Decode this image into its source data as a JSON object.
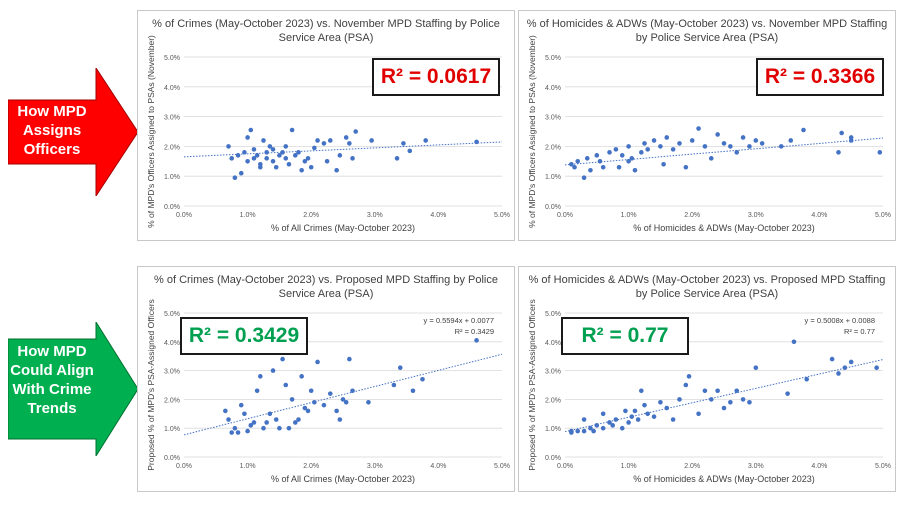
{
  "arrows": [
    {
      "label": "How MPD Assigns Officers",
      "color": "#ff0000"
    },
    {
      "label": "How MPD Could Align With Crime Trends",
      "color": "#00b050"
    }
  ],
  "colors": {
    "point": "#4472c4",
    "trend": "#4472c4",
    "r2_red": "#e00000",
    "r2_green": "#00a050"
  },
  "chart_data": [
    {
      "type": "scatter",
      "title": "% of Crimes (May-October 2023) vs. November MPD Staffing by Police Service Area (PSA)",
      "xlabel": "% of All Crimes (May-October 2023)",
      "ylabel": "% of MPD's Officers Assigned to PSAs (November)",
      "xlim": [
        0,
        5
      ],
      "ylim": [
        0,
        5
      ],
      "xticks": [
        "0.0%",
        "1.0%",
        "2.0%",
        "3.0%",
        "4.0%",
        "5.0%"
      ],
      "yticks": [
        "0.0%",
        "1.0%",
        "2.0%",
        "3.0%",
        "4.0%",
        "5.0%"
      ],
      "r2_label": "R² = 0.0617",
      "r2_color": "red",
      "trend": {
        "slope": 0.1,
        "intercept": 1.65
      },
      "equation": "",
      "r2_text": "",
      "points": [
        [
          0.7,
          2.0
        ],
        [
          0.75,
          1.6
        ],
        [
          0.8,
          0.95
        ],
        [
          0.85,
          1.7
        ],
        [
          0.9,
          1.1
        ],
        [
          0.95,
          1.8
        ],
        [
          1.0,
          2.3
        ],
        [
          1.0,
          1.5
        ],
        [
          1.05,
          2.55
        ],
        [
          1.1,
          1.6
        ],
        [
          1.1,
          1.9
        ],
        [
          1.15,
          1.7
        ],
        [
          1.2,
          1.4
        ],
        [
          1.2,
          1.3
        ],
        [
          1.25,
          2.2
        ],
        [
          1.3,
          1.6
        ],
        [
          1.3,
          1.8
        ],
        [
          1.35,
          2.0
        ],
        [
          1.4,
          1.5
        ],
        [
          1.4,
          1.9
        ],
        [
          1.45,
          1.3
        ],
        [
          1.5,
          1.7
        ],
        [
          1.55,
          1.8
        ],
        [
          1.6,
          1.6
        ],
        [
          1.6,
          2.0
        ],
        [
          1.65,
          1.4
        ],
        [
          1.7,
          2.55
        ],
        [
          1.75,
          1.7
        ],
        [
          1.8,
          1.8
        ],
        [
          1.85,
          1.2
        ],
        [
          1.9,
          1.5
        ],
        [
          1.95,
          1.6
        ],
        [
          2.0,
          1.3
        ],
        [
          2.05,
          1.95
        ],
        [
          2.1,
          2.2
        ],
        [
          2.2,
          2.1
        ],
        [
          2.25,
          1.5
        ],
        [
          2.3,
          2.2
        ],
        [
          2.4,
          1.2
        ],
        [
          2.45,
          1.7
        ],
        [
          2.55,
          2.3
        ],
        [
          2.6,
          2.1
        ],
        [
          2.65,
          1.6
        ],
        [
          2.7,
          2.5
        ],
        [
          2.95,
          2.2
        ],
        [
          3.35,
          1.6
        ],
        [
          3.45,
          2.1
        ],
        [
          3.55,
          1.85
        ],
        [
          3.8,
          2.2
        ],
        [
          4.6,
          2.15
        ]
      ]
    },
    {
      "type": "scatter",
      "title": "% of Homicides & ADWs (May-October 2023) vs. November MPD Staffing by Police Service Area (PSA)",
      "xlabel": "% of Homicides & ADWs (May-October 2023)",
      "ylabel": "% of MPD's Officers Assigned to PSAs (November)",
      "xlim": [
        0,
        5
      ],
      "ylim": [
        0,
        5
      ],
      "xticks": [
        "0.0%",
        "1.0%",
        "2.0%",
        "3.0%",
        "4.0%",
        "5.0%"
      ],
      "yticks": [
        "0.0%",
        "1.0%",
        "2.0%",
        "3.0%",
        "4.0%",
        "5.0%"
      ],
      "r2_label": "R² = 0.3366",
      "r2_color": "red",
      "trend": {
        "slope": 0.18,
        "intercept": 1.38
      },
      "equation": "",
      "r2_text": "",
      "points": [
        [
          0.1,
          1.4
        ],
        [
          0.15,
          1.3
        ],
        [
          0.2,
          1.5
        ],
        [
          0.3,
          0.95
        ],
        [
          0.35,
          1.6
        ],
        [
          0.4,
          1.2
        ],
        [
          0.5,
          1.7
        ],
        [
          0.55,
          1.5
        ],
        [
          0.6,
          1.3
        ],
        [
          0.7,
          1.8
        ],
        [
          0.8,
          1.9
        ],
        [
          0.85,
          1.3
        ],
        [
          0.9,
          1.7
        ],
        [
          1.0,
          1.5
        ],
        [
          1.0,
          2.0
        ],
        [
          1.05,
          1.6
        ],
        [
          1.1,
          1.2
        ],
        [
          1.2,
          1.8
        ],
        [
          1.25,
          2.1
        ],
        [
          1.3,
          1.9
        ],
        [
          1.4,
          2.2
        ],
        [
          1.5,
          2.0
        ],
        [
          1.55,
          1.4
        ],
        [
          1.6,
          2.3
        ],
        [
          1.7,
          1.9
        ],
        [
          1.8,
          2.1
        ],
        [
          1.9,
          1.3
        ],
        [
          2.0,
          2.2
        ],
        [
          2.1,
          2.6
        ],
        [
          2.2,
          2.0
        ],
        [
          2.3,
          1.6
        ],
        [
          2.4,
          2.4
        ],
        [
          2.5,
          2.1
        ],
        [
          2.6,
          2.0
        ],
        [
          2.7,
          1.8
        ],
        [
          2.8,
          2.3
        ],
        [
          2.9,
          2.0
        ],
        [
          3.0,
          2.2
        ],
        [
          3.1,
          2.1
        ],
        [
          3.4,
          2.0
        ],
        [
          3.55,
          2.2
        ],
        [
          3.75,
          2.55
        ],
        [
          4.3,
          1.8
        ],
        [
          4.35,
          2.45
        ],
        [
          4.5,
          2.2
        ],
        [
          4.5,
          2.3
        ],
        [
          4.95,
          1.8
        ]
      ]
    },
    {
      "type": "scatter",
      "title": "% of Crimes (May-October 2023) vs. Proposed MPD Staffing by Police Service Area (PSA)",
      "xlabel": "% of All Crimes (May-October 2023)",
      "ylabel": "Proposed % of MPD's PSA-Assigned Officers",
      "xlim": [
        0,
        5
      ],
      "ylim": [
        0,
        5
      ],
      "xticks": [
        "0.0%",
        "1.0%",
        "2.0%",
        "3.0%",
        "4.0%",
        "5.0%"
      ],
      "yticks": [
        "0.0%",
        "1.0%",
        "2.0%",
        "3.0%",
        "4.0%",
        "5.0%"
      ],
      "r2_label": "R² = 0.3429",
      "r2_color": "green",
      "trend": {
        "slope": 0.5594,
        "intercept": 0.77
      },
      "equation": "y = 0.5594x + 0.0077",
      "r2_text": "R² = 0.3429",
      "points": [
        [
          0.65,
          1.6
        ],
        [
          0.7,
          1.3
        ],
        [
          0.75,
          0.85
        ],
        [
          0.8,
          1.0
        ],
        [
          0.85,
          0.85
        ],
        [
          0.9,
          1.8
        ],
        [
          0.95,
          1.5
        ],
        [
          1.0,
          0.9
        ],
        [
          1.05,
          1.1
        ],
        [
          1.1,
          1.2
        ],
        [
          1.15,
          2.3
        ],
        [
          1.2,
          2.8
        ],
        [
          1.25,
          1.0
        ],
        [
          1.3,
          1.2
        ],
        [
          1.35,
          1.5
        ],
        [
          1.4,
          3.0
        ],
        [
          1.45,
          1.3
        ],
        [
          1.5,
          1.0
        ],
        [
          1.55,
          3.4
        ],
        [
          1.6,
          2.5
        ],
        [
          1.65,
          1.0
        ],
        [
          1.7,
          2.0
        ],
        [
          1.75,
          1.2
        ],
        [
          1.8,
          1.3
        ],
        [
          1.85,
          2.8
        ],
        [
          1.9,
          1.7
        ],
        [
          1.95,
          1.6
        ],
        [
          2.0,
          2.3
        ],
        [
          2.05,
          1.9
        ],
        [
          2.1,
          3.3
        ],
        [
          2.2,
          1.8
        ],
        [
          2.3,
          2.2
        ],
        [
          2.4,
          1.6
        ],
        [
          2.45,
          1.3
        ],
        [
          2.5,
          2.0
        ],
        [
          2.55,
          1.9
        ],
        [
          2.6,
          3.4
        ],
        [
          2.65,
          2.3
        ],
        [
          2.9,
          1.9
        ],
        [
          3.3,
          2.5
        ],
        [
          3.4,
          3.1
        ],
        [
          3.6,
          2.3
        ],
        [
          3.75,
          2.7
        ],
        [
          4.6,
          4.05
        ]
      ]
    },
    {
      "type": "scatter",
      "title": "% of Homicides & ADWs (May-October 2023) vs. Proposed MPD Staffing by Police Service Area (PSA)",
      "xlabel": "% of Homicides & ADWs (May-October 2023)",
      "ylabel": "Proposed % of MPD's PSA-Assigned Officers",
      "xlim": [
        0,
        5
      ],
      "ylim": [
        0,
        5
      ],
      "xticks": [
        "0.0%",
        "1.0%",
        "2.0%",
        "3.0%",
        "4.0%",
        "5.0%"
      ],
      "yticks": [
        "0.0%",
        "1.0%",
        "2.0%",
        "3.0%",
        "4.0%",
        "5.0%"
      ],
      "r2_label": "R² = 0.77",
      "r2_color": "green",
      "trend": {
        "slope": 0.5008,
        "intercept": 0.88
      },
      "equation": "y = 0.5008x + 0.0088",
      "r2_text": "R² = 0.77",
      "points": [
        [
          0.1,
          0.9
        ],
        [
          0.1,
          0.85
        ],
        [
          0.2,
          0.9
        ],
        [
          0.3,
          0.9
        ],
        [
          0.3,
          1.3
        ],
        [
          0.4,
          1.0
        ],
        [
          0.45,
          0.9
        ],
        [
          0.5,
          1.1
        ],
        [
          0.6,
          1.0
        ],
        [
          0.6,
          1.5
        ],
        [
          0.7,
          1.2
        ],
        [
          0.75,
          1.1
        ],
        [
          0.8,
          1.3
        ],
        [
          0.9,
          1.0
        ],
        [
          0.95,
          1.6
        ],
        [
          1.0,
          1.2
        ],
        [
          1.05,
          1.4
        ],
        [
          1.1,
          1.6
        ],
        [
          1.15,
          1.3
        ],
        [
          1.2,
          2.3
        ],
        [
          1.25,
          1.8
        ],
        [
          1.3,
          1.5
        ],
        [
          1.4,
          1.4
        ],
        [
          1.5,
          1.9
        ],
        [
          1.6,
          1.7
        ],
        [
          1.7,
          1.3
        ],
        [
          1.8,
          2.0
        ],
        [
          1.9,
          2.5
        ],
        [
          1.95,
          2.8
        ],
        [
          2.1,
          1.5
        ],
        [
          2.2,
          2.3
        ],
        [
          2.3,
          2.0
        ],
        [
          2.4,
          2.3
        ],
        [
          2.5,
          1.7
        ],
        [
          2.6,
          1.9
        ],
        [
          2.7,
          2.3
        ],
        [
          2.8,
          2.0
        ],
        [
          2.9,
          1.9
        ],
        [
          3.0,
          3.1
        ],
        [
          3.5,
          2.2
        ],
        [
          3.6,
          4.0
        ],
        [
          3.8,
          2.7
        ],
        [
          4.2,
          3.4
        ],
        [
          4.3,
          2.9
        ],
        [
          4.4,
          3.1
        ],
        [
          4.5,
          3.3
        ],
        [
          4.9,
          3.1
        ]
      ]
    }
  ]
}
